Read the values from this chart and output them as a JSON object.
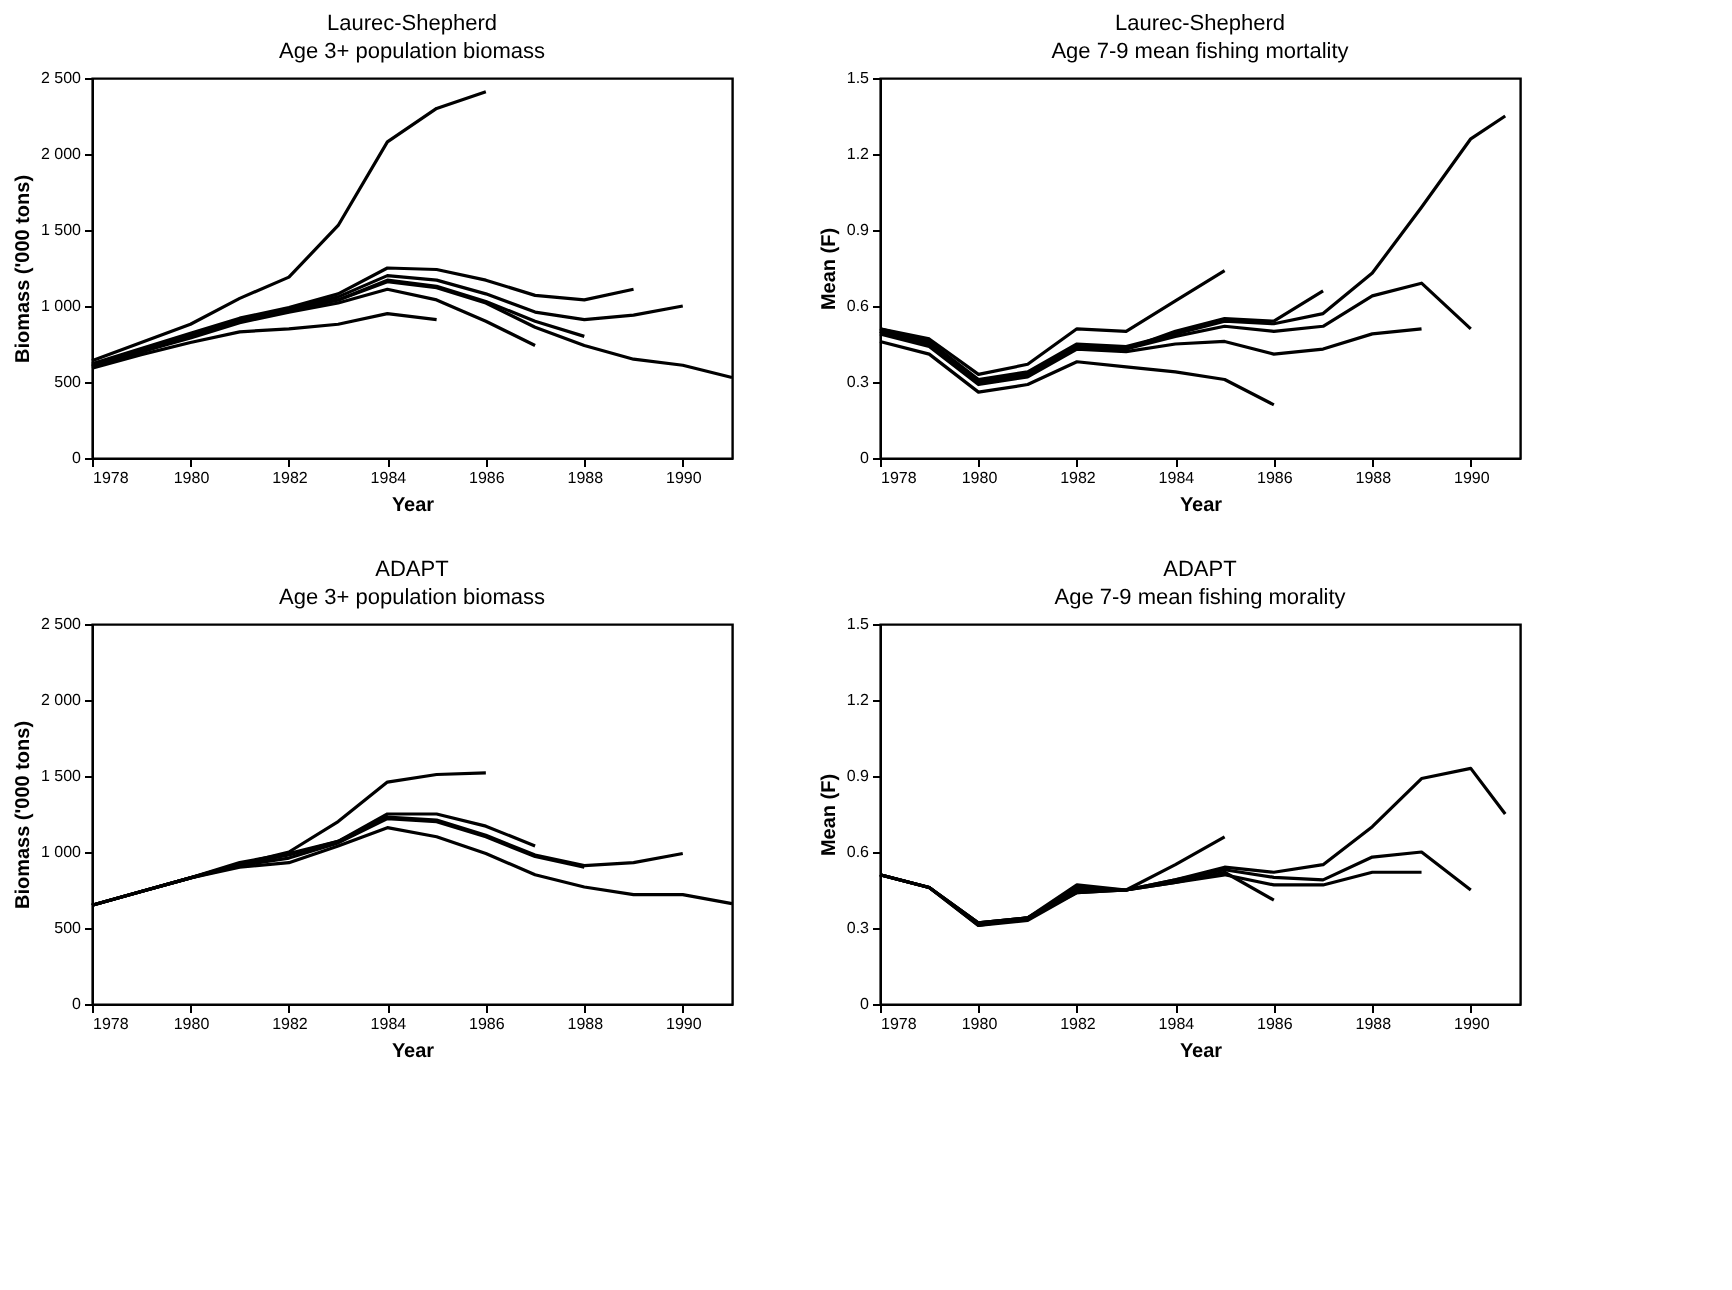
{
  "chart_data": [
    {
      "type": "line",
      "title": "Laurec-Shepherd",
      "subtitle": "Age 3+ population biomass",
      "xlabel": "Year",
      "ylabel": "Biomass ('000 tons)",
      "xlim": [
        1978,
        1991
      ],
      "xticks": [
        1978,
        1980,
        1982,
        1984,
        1986,
        1988,
        1990
      ],
      "ylim": [
        0,
        2500
      ],
      "yticks": [
        0,
        500,
        {
          "value": 1000,
          "label": "1 000"
        },
        {
          "value": 1500,
          "label": "1 500"
        },
        {
          "value": 2000,
          "label": "2 000"
        },
        {
          "value": 2500,
          "label": "2 500"
        }
      ],
      "grid": false,
      "legend": false,
      "line_style": "solid",
      "marker": "none",
      "series": [
        {
          "color": "#000000",
          "x": [
            1978,
            1979,
            1980,
            1981,
            1982,
            1983,
            1984,
            1985,
            1986
          ],
          "values": [
            640,
            760,
            880,
            1050,
            1190,
            1530,
            2080,
            2300,
            2410
          ]
        },
        {
          "color": "#000000",
          "x": [
            1978,
            1979,
            1980,
            1981,
            1982,
            1983,
            1984,
            1985
          ],
          "values": [
            590,
            680,
            760,
            830,
            850,
            880,
            950,
            910
          ]
        },
        {
          "color": "#000000",
          "x": [
            1978,
            1979,
            1980,
            1981,
            1982,
            1983,
            1984,
            1985,
            1986,
            1987
          ],
          "values": [
            600,
            700,
            790,
            890,
            960,
            1020,
            1110,
            1040,
            900,
            740
          ]
        },
        {
          "color": "#000000",
          "x": [
            1978,
            1979,
            1980,
            1981,
            1982,
            1983,
            1984,
            1985,
            1986,
            1987,
            1988
          ],
          "values": [
            610,
            700,
            800,
            900,
            970,
            1040,
            1170,
            1130,
            1030,
            900,
            800
          ]
        },
        {
          "color": "#000000",
          "x": [
            1978,
            1979,
            1980,
            1981,
            1982,
            1983,
            1984,
            1985,
            1986,
            1987,
            1988,
            1989
          ],
          "values": [
            620,
            720,
            820,
            920,
            990,
            1080,
            1250,
            1240,
            1170,
            1070,
            1040,
            1110
          ]
        },
        {
          "color": "#000000",
          "x": [
            1978,
            1979,
            1980,
            1981,
            1982,
            1983,
            1984,
            1985,
            1986,
            1987,
            1988,
            1989,
            1990
          ],
          "values": [
            610,
            710,
            810,
            910,
            980,
            1060,
            1200,
            1170,
            1080,
            960,
            910,
            940,
            1000
          ]
        },
        {
          "color": "#000000",
          "x": [
            1978,
            1979,
            1980,
            1981,
            1982,
            1983,
            1984,
            1985,
            1986,
            1987,
            1988,
            1989,
            1990,
            1991
          ],
          "values": [
            600,
            700,
            800,
            900,
            970,
            1040,
            1160,
            1120,
            1020,
            860,
            740,
            650,
            610,
            530
          ]
        }
      ]
    },
    {
      "type": "line",
      "title": "Laurec-Shepherd",
      "subtitle": "Age 7-9 mean fishing mortality",
      "xlabel": "Year",
      "ylabel": "Mean (F)",
      "xlim": [
        1978,
        1991
      ],
      "xticks": [
        1978,
        1980,
        1982,
        1984,
        1986,
        1988,
        1990
      ],
      "ylim": [
        0,
        1.5
      ],
      "yticks": [
        0,
        0.3,
        0.6,
        0.9,
        1.2,
        1.5
      ],
      "grid": false,
      "legend": false,
      "line_style": "solid",
      "marker": "none",
      "series": [
        {
          "color": "#000000",
          "x": [
            1978,
            1979,
            1980,
            1981,
            1982,
            1983,
            1984,
            1985
          ],
          "values": [
            0.51,
            0.47,
            0.33,
            0.37,
            0.51,
            0.5,
            0.62,
            0.74
          ]
        },
        {
          "color": "#000000",
          "x": [
            1978,
            1979,
            1980,
            1981,
            1982,
            1983,
            1984,
            1985,
            1986
          ],
          "values": [
            0.46,
            0.41,
            0.26,
            0.29,
            0.38,
            0.36,
            0.34,
            0.31,
            0.21
          ]
        },
        {
          "color": "#000000",
          "x": [
            1978,
            1979,
            1980,
            1981,
            1982,
            1983,
            1984,
            1985,
            1986,
            1987
          ],
          "values": [
            0.5,
            0.45,
            0.3,
            0.33,
            0.44,
            0.43,
            0.5,
            0.55,
            0.54,
            0.66
          ]
        },
        {
          "color": "#000000",
          "x": [
            1978,
            1979,
            1980,
            1981,
            1982,
            1983,
            1984,
            1985,
            1986,
            1987,
            1988,
            1989
          ],
          "values": [
            0.49,
            0.44,
            0.29,
            0.32,
            0.43,
            0.42,
            0.45,
            0.46,
            0.41,
            0.43,
            0.49,
            0.51
          ]
        },
        {
          "color": "#000000",
          "x": [
            1978,
            1979,
            1980,
            1981,
            1982,
            1983,
            1984,
            1985,
            1986,
            1987,
            1988,
            1989,
            1990
          ],
          "values": [
            0.5,
            0.45,
            0.3,
            0.33,
            0.44,
            0.43,
            0.48,
            0.52,
            0.5,
            0.52,
            0.64,
            0.69,
            0.51
          ]
        },
        {
          "color": "#000000",
          "x": [
            1978,
            1979,
            1980,
            1981,
            1982,
            1983,
            1984,
            1985,
            1986,
            1987,
            1988,
            1989,
            1990,
            1990.7
          ],
          "values": [
            0.51,
            0.46,
            0.31,
            0.34,
            0.45,
            0.44,
            0.49,
            0.54,
            0.53,
            0.57,
            0.73,
            0.99,
            1.26,
            1.35
          ]
        }
      ]
    },
    {
      "type": "line",
      "title": "ADAPT",
      "subtitle": "Age 3+ population biomass",
      "xlabel": "Year",
      "ylabel": "Biomass ('000 tons)",
      "xlim": [
        1978,
        1991
      ],
      "xticks": [
        1978,
        1980,
        1982,
        1984,
        1986,
        1988,
        1990
      ],
      "ylim": [
        0,
        2500
      ],
      "yticks": [
        0,
        500,
        {
          "value": 1000,
          "label": "1 000"
        },
        {
          "value": 1500,
          "label": "1 500"
        },
        {
          "value": 2000,
          "label": "2 000"
        },
        {
          "value": 2500,
          "label": "2 500"
        }
      ],
      "grid": false,
      "legend": false,
      "line_style": "solid",
      "marker": "none",
      "series": [
        {
          "color": "#000000",
          "x": [
            1978,
            1979,
            1980,
            1981,
            1982,
            1983,
            1984,
            1985,
            1986
          ],
          "values": [
            650,
            740,
            830,
            920,
            1000,
            1200,
            1460,
            1510,
            1520
          ]
        },
        {
          "color": "#000000",
          "x": [
            1978,
            1979,
            1980,
            1981,
            1982,
            1983,
            1984,
            1985,
            1986,
            1987
          ],
          "values": [
            650,
            740,
            830,
            930,
            990,
            1070,
            1250,
            1250,
            1170,
            1040
          ]
        },
        {
          "color": "#000000",
          "x": [
            1978,
            1979,
            1980,
            1981,
            1982,
            1983,
            1984,
            1985,
            1986,
            1987,
            1988
          ],
          "values": [
            650,
            740,
            830,
            910,
            960,
            1060,
            1220,
            1200,
            1100,
            970,
            900
          ]
        },
        {
          "color": "#000000",
          "x": [
            1978,
            1979,
            1980,
            1981,
            1982,
            1983,
            1984,
            1985,
            1986,
            1987,
            1988,
            1989,
            1990
          ],
          "values": [
            650,
            740,
            830,
            920,
            980,
            1070,
            1230,
            1210,
            1110,
            980,
            910,
            930,
            990
          ]
        },
        {
          "color": "#000000",
          "x": [
            1978,
            1979,
            1980,
            1981,
            1982,
            1983,
            1984,
            1985,
            1986,
            1987,
            1988,
            1989,
            1990,
            1991
          ],
          "values": [
            650,
            740,
            830,
            900,
            930,
            1040,
            1160,
            1100,
            990,
            850,
            770,
            720,
            720,
            660
          ]
        }
      ]
    },
    {
      "type": "line",
      "title": "ADAPT",
      "subtitle": "Age 7-9 mean fishing morality",
      "xlabel": "Year",
      "ylabel": "Mean (F)",
      "xlim": [
        1978,
        1991
      ],
      "xticks": [
        1978,
        1980,
        1982,
        1984,
        1986,
        1988,
        1990
      ],
      "ylim": [
        0,
        1.5
      ],
      "yticks": [
        0,
        0.3,
        0.6,
        0.9,
        1.2,
        1.5
      ],
      "grid": false,
      "legend": false,
      "line_style": "solid",
      "marker": "none",
      "series": [
        {
          "color": "#000000",
          "x": [
            1978,
            1979,
            1980,
            1981,
            1982,
            1983,
            1984,
            1985
          ],
          "values": [
            0.51,
            0.46,
            0.32,
            0.34,
            0.45,
            0.45,
            0.55,
            0.66
          ]
        },
        {
          "color": "#000000",
          "x": [
            1978,
            1979,
            1980,
            1981,
            1982,
            1983,
            1984,
            1985,
            1986
          ],
          "values": [
            0.51,
            0.46,
            0.31,
            0.34,
            0.44,
            0.45,
            0.48,
            0.52,
            0.41
          ]
        },
        {
          "color": "#000000",
          "x": [
            1978,
            1979,
            1980,
            1981,
            1982,
            1983,
            1984,
            1985,
            1986,
            1987,
            1988,
            1989
          ],
          "values": [
            0.51,
            0.46,
            0.31,
            0.33,
            0.44,
            0.45,
            0.48,
            0.51,
            0.47,
            0.47,
            0.52,
            0.52
          ]
        },
        {
          "color": "#000000",
          "x": [
            1978,
            1979,
            1980,
            1981,
            1982,
            1983,
            1984,
            1985,
            1986,
            1987,
            1988,
            1989,
            1990
          ],
          "values": [
            0.51,
            0.46,
            0.32,
            0.34,
            0.46,
            0.45,
            0.49,
            0.53,
            0.5,
            0.49,
            0.58,
            0.6,
            0.45
          ]
        },
        {
          "color": "#000000",
          "x": [
            1978,
            1979,
            1980,
            1981,
            1982,
            1983,
            1984,
            1985,
            1986,
            1987,
            1988,
            1989,
            1990,
            1990.7
          ],
          "values": [
            0.51,
            0.46,
            0.32,
            0.34,
            0.47,
            0.45,
            0.49,
            0.54,
            0.52,
            0.55,
            0.7,
            0.89,
            0.93,
            0.75
          ]
        }
      ]
    }
  ]
}
